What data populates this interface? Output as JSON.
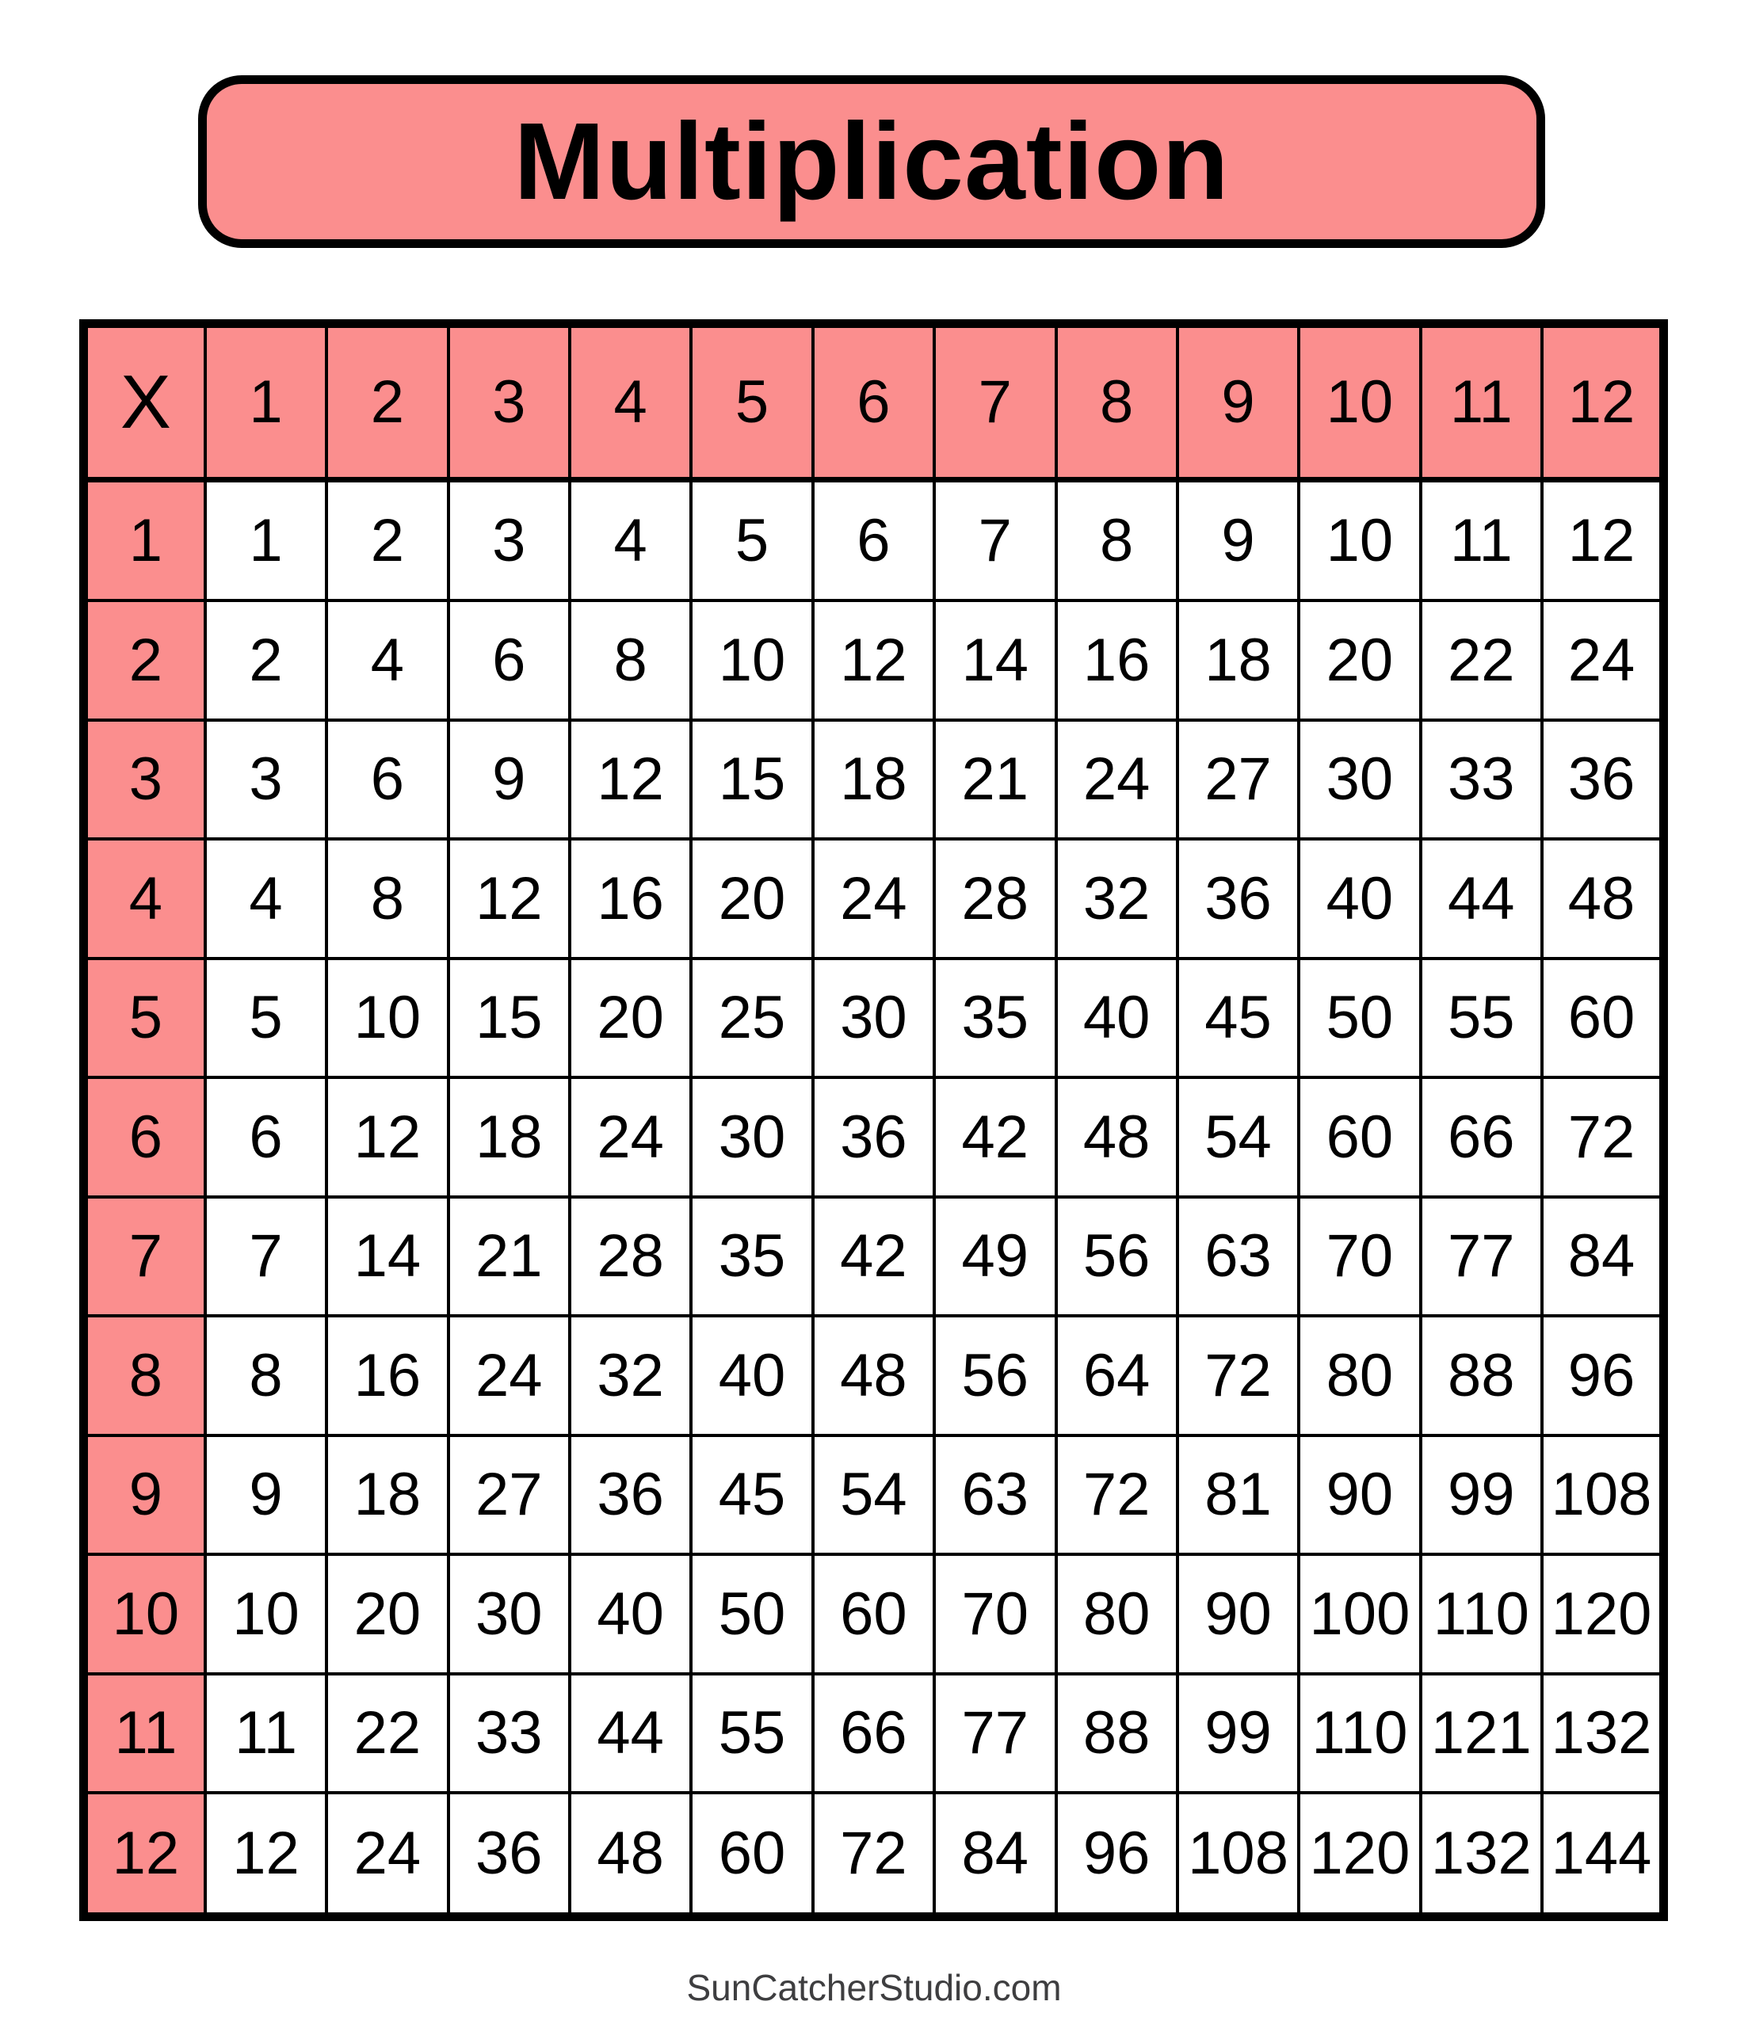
{
  "title": {
    "text": "Multiplication",
    "bg_color": "#FB8E8E",
    "border_color": "#000000"
  },
  "table": {
    "corner_label": "X",
    "column_headers": [
      "1",
      "2",
      "3",
      "4",
      "5",
      "6",
      "7",
      "8",
      "9",
      "10",
      "11",
      "12"
    ],
    "row_headers": [
      "1",
      "2",
      "3",
      "4",
      "5",
      "6",
      "7",
      "8",
      "9",
      "10",
      "11",
      "12"
    ],
    "values": [
      [
        1,
        2,
        3,
        4,
        5,
        6,
        7,
        8,
        9,
        10,
        11,
        12
      ],
      [
        2,
        4,
        6,
        8,
        10,
        12,
        14,
        16,
        18,
        20,
        22,
        24
      ],
      [
        3,
        6,
        9,
        12,
        15,
        18,
        21,
        24,
        27,
        30,
        33,
        36
      ],
      [
        4,
        8,
        12,
        16,
        20,
        24,
        28,
        32,
        36,
        40,
        44,
        48
      ],
      [
        5,
        10,
        15,
        20,
        25,
        30,
        35,
        40,
        45,
        50,
        55,
        60
      ],
      [
        6,
        12,
        18,
        24,
        30,
        36,
        42,
        48,
        54,
        60,
        66,
        72
      ],
      [
        7,
        14,
        21,
        28,
        35,
        42,
        49,
        56,
        63,
        70,
        77,
        84
      ],
      [
        8,
        16,
        24,
        32,
        40,
        48,
        56,
        64,
        72,
        80,
        88,
        96
      ],
      [
        9,
        18,
        27,
        36,
        45,
        54,
        63,
        72,
        81,
        90,
        99,
        108
      ],
      [
        10,
        20,
        30,
        40,
        50,
        60,
        70,
        80,
        90,
        100,
        110,
        120
      ],
      [
        11,
        22,
        33,
        44,
        55,
        66,
        77,
        88,
        99,
        110,
        121,
        132
      ],
      [
        12,
        24,
        36,
        48,
        60,
        72,
        84,
        96,
        108,
        120,
        132,
        144
      ]
    ],
    "header_bg": "#FB8E8E",
    "cell_bg": "#FFFFFF",
    "border_color": "#000000"
  },
  "footer": {
    "text": "SunCatcherStudio.com",
    "color": "#3E3E40"
  }
}
